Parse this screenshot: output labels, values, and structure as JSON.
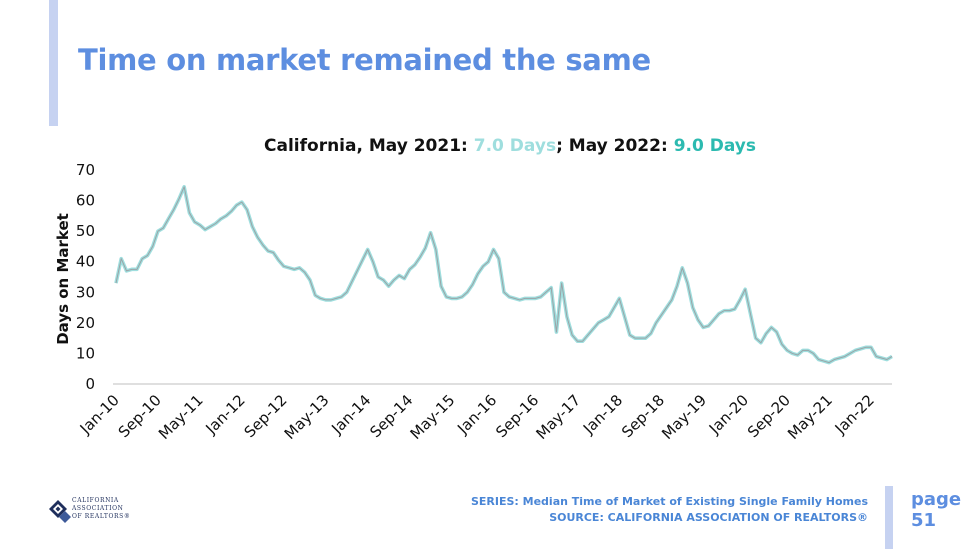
{
  "slide": {
    "title": "Time on market remained the same",
    "page_label": "page",
    "page_number": "51"
  },
  "chart_title": {
    "prefix": "California, May 2021: ",
    "value_2021": "7.0 Days",
    "separator": "; May 2022: ",
    "value_2022": "9.0 Days"
  },
  "footer": {
    "series": "SERIES: Median Time of Market of Existing Single Family Homes",
    "source": "SOURCE: CALIFORNIA ASSOCIATION OF REALTORS®"
  },
  "logo": {
    "line1": "CALIFORNIA",
    "line2": "ASSOCIATION",
    "line3": "OF REALTORS®"
  },
  "colors": {
    "title": "#5d8ee0",
    "line_outer": "#9fdede",
    "line_inner": "#9aa3a6",
    "value_2021": "#9fdede",
    "value_2022": "#2cbab0"
  },
  "chart_data": {
    "type": "line",
    "title": "California, May 2021: 7.0 Days; May 2022: 9.0 Days",
    "xlabel": "",
    "ylabel": "Days on Market",
    "ylim": [
      0,
      70
    ],
    "yticks": [
      0,
      10,
      20,
      30,
      40,
      50,
      60,
      70
    ],
    "grid": false,
    "legend": "none",
    "x_tick_labels": [
      "Jan-10",
      "Sep-10",
      "May-11",
      "Jan-12",
      "Sep-12",
      "May-13",
      "Jan-14",
      "Sep-14",
      "May-15",
      "Jan-16",
      "Sep-16",
      "May-17",
      "Jan-18",
      "Sep-18",
      "May-19",
      "Jan-20",
      "Sep-20",
      "May-21",
      "Jan-22"
    ],
    "x_start": "Jan-10",
    "x_end": "May-22",
    "series": [
      {
        "values": [
          33,
          41,
          37,
          37.5,
          37.5,
          41,
          42,
          45,
          50,
          51,
          54,
          57,
          60.5,
          64.5,
          56,
          53,
          52,
          50.5,
          51.5,
          52.5,
          54,
          55,
          56.5,
          58.5,
          59.5,
          57,
          51.5,
          48,
          45.5,
          43.5,
          43,
          40.5,
          38.5,
          38,
          37.5,
          38,
          36.5,
          34,
          29,
          28,
          27.5,
          27.5,
          28,
          28.5,
          30,
          33.5,
          37,
          40.5,
          44,
          40,
          35,
          34,
          32,
          34,
          35.5,
          34.5,
          37.5,
          39,
          41.5,
          44.5,
          49.5,
          44,
          32,
          28.5,
          28,
          28,
          28.5,
          30,
          32.5,
          36,
          38.5,
          40,
          44,
          41,
          30,
          28.5,
          28,
          27.5,
          28,
          28,
          28,
          28.5,
          30,
          31.5,
          17,
          33,
          22,
          16,
          14,
          14,
          16,
          18,
          20,
          21,
          22,
          25,
          28,
          22,
          16,
          15,
          15,
          15,
          16.5,
          20,
          22.5,
          25,
          27.5,
          32,
          38,
          33,
          25,
          21,
          18.5,
          19,
          21,
          23,
          24,
          24,
          24.5,
          27.5,
          31,
          23,
          15,
          13.5,
          16.5,
          18.5,
          17,
          13,
          11,
          10,
          9.5,
          11,
          11,
          10,
          8,
          7.5,
          7,
          8,
          8.5,
          9,
          10,
          11,
          11.5,
          12,
          12,
          9,
          8.5,
          8,
          9
        ]
      }
    ]
  }
}
